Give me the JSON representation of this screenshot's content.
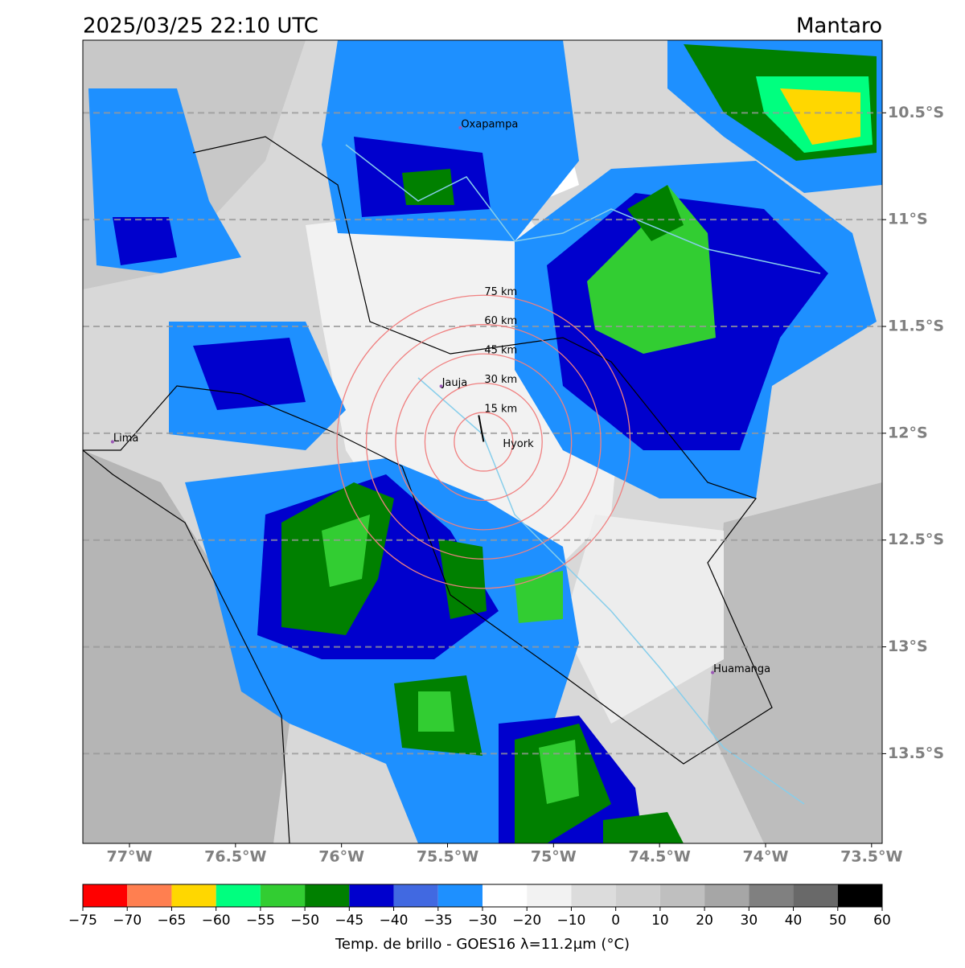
{
  "title": "2025/03/25 22:10 UTC",
  "region": "Mantaro",
  "map": {
    "xlim": [
      -77.22,
      -73.45
    ],
    "ylim": [
      -13.92,
      -10.16
    ],
    "grid": true,
    "xticks": [
      {
        "value": -77,
        "label": "77°W"
      },
      {
        "value": -76.5,
        "label": "76.5°W"
      },
      {
        "value": -76,
        "label": "76°W"
      },
      {
        "value": -75.5,
        "label": "75.5°W"
      },
      {
        "value": -75,
        "label": "75°W"
      },
      {
        "value": -74.5,
        "label": "74.5°W"
      },
      {
        "value": -74,
        "label": "74°W"
      },
      {
        "value": -73.5,
        "label": "73.5°W"
      }
    ],
    "yticks": [
      {
        "value": -10.5,
        "label": "10.5°S"
      },
      {
        "value": -11,
        "label": "11°S"
      },
      {
        "value": -11.5,
        "label": "11.5°S"
      },
      {
        "value": -12,
        "label": "12°S"
      },
      {
        "value": -12.5,
        "label": "12.5°S"
      },
      {
        "value": -13,
        "label": "13°S"
      },
      {
        "value": -13.5,
        "label": "13.5°S"
      }
    ],
    "cities": [
      {
        "name": "Oxapampa",
        "lon": -75.44,
        "lat": -10.57
      },
      {
        "name": "Jauja",
        "lon": -75.53,
        "lat": -11.78
      },
      {
        "name": "Lima",
        "lon": -77.08,
        "lat": -12.04
      },
      {
        "name": "Huamanga",
        "lon": -74.25,
        "lat": -13.12
      }
    ],
    "radar": {
      "name": "Hyork",
      "lon": -75.33,
      "lat": -12.04,
      "rings": [
        {
          "radius_km": 15,
          "label": "15 km"
        },
        {
          "radius_km": 30,
          "label": "30 km"
        },
        {
          "radius_km": 45,
          "label": "45 km"
        },
        {
          "radius_km": 60,
          "label": "60 km"
        },
        {
          "radius_km": 75,
          "label": "75 km"
        }
      ]
    }
  },
  "colorbar": {
    "bounds": [
      {
        "value": -75,
        "label": "−75"
      },
      {
        "value": -70,
        "label": "−70"
      },
      {
        "value": -65,
        "label": "−65"
      },
      {
        "value": -60,
        "label": "−60"
      },
      {
        "value": -55,
        "label": "−55"
      },
      {
        "value": -50,
        "label": "−50"
      },
      {
        "value": -45,
        "label": "−45"
      },
      {
        "value": -40,
        "label": "−40"
      },
      {
        "value": -35,
        "label": "−35"
      },
      {
        "value": -30,
        "label": "−30"
      },
      {
        "value": -20,
        "label": "−20"
      },
      {
        "value": -10,
        "label": "−10"
      },
      0,
      10,
      20,
      30,
      40,
      50,
      60
    ],
    "colors": [
      "#ff0000",
      "#ff7f50",
      "#ffd700",
      "#00ff7f",
      "#32cd32",
      "#008000",
      "#0000cd",
      "#4169e1",
      "#1e90ff",
      "#ffffff",
      "#f2f2f2",
      "#dcdcdc",
      "#cfcfcf",
      "#bfbfbf",
      "#a6a6a6",
      "#808080",
      "#696969",
      "#000000"
    ],
    "label": "Temp. de brillo - GOES16 λ=11.2μm (°C)"
  }
}
